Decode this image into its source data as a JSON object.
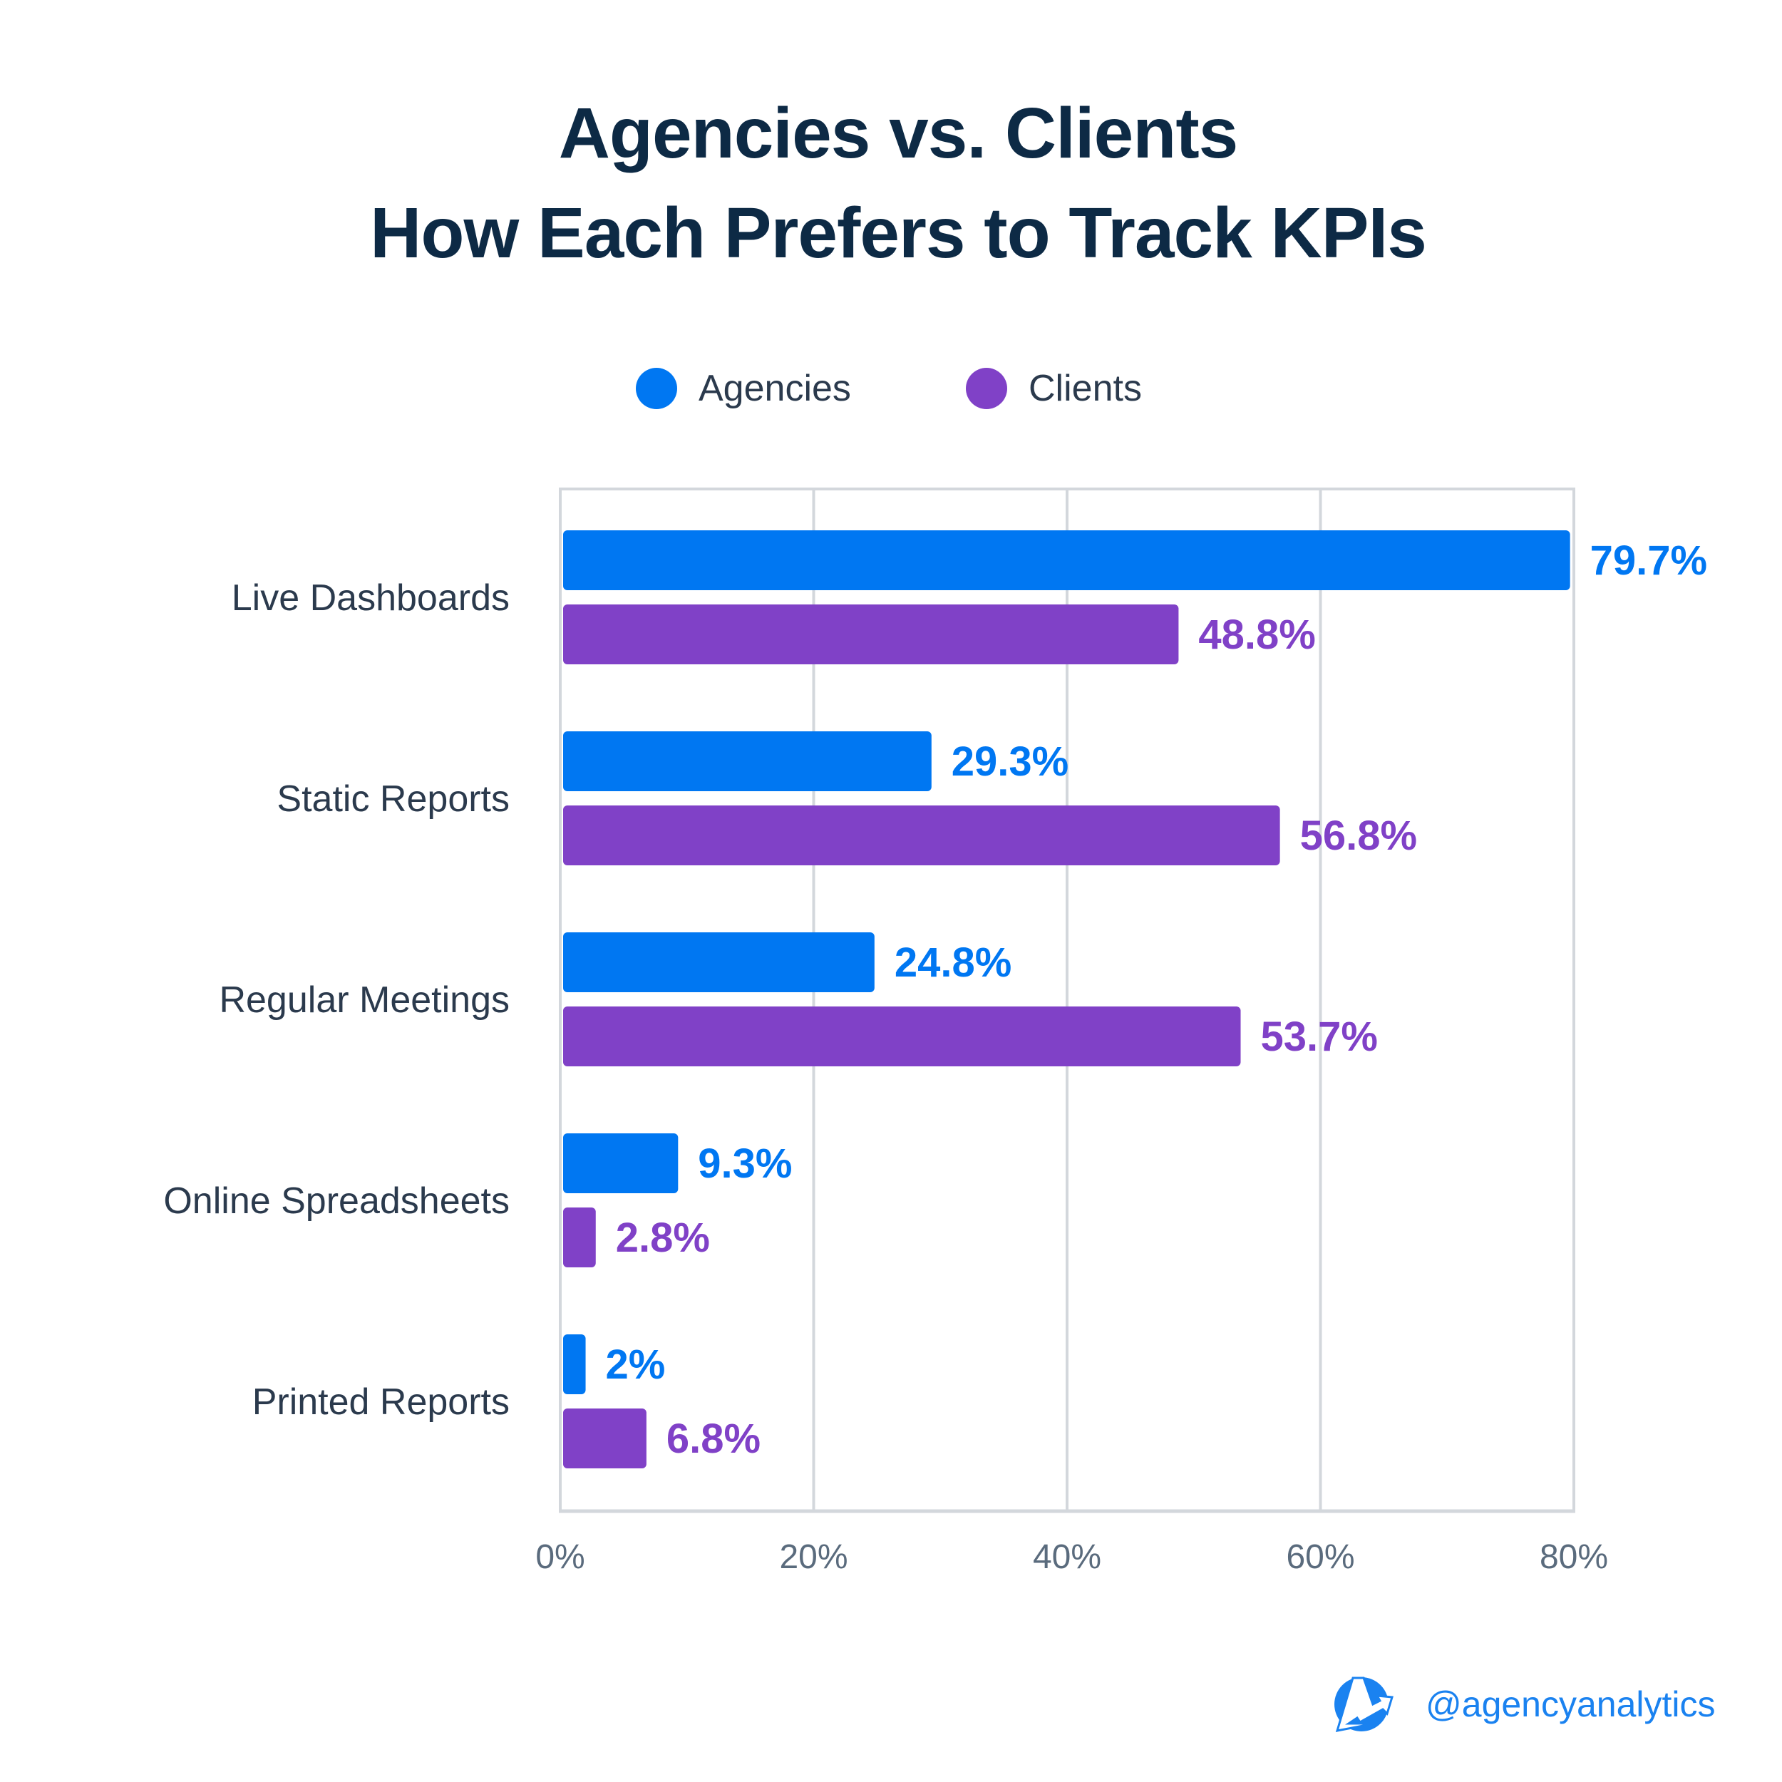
{
  "chart_data": {
    "type": "bar",
    "orientation": "horizontal",
    "title": "Agencies vs. Clients",
    "subtitle": "How Each Prefers to Track KPIs",
    "categories": [
      "Live Dashboards",
      "Static Reports",
      "Regular Meetings",
      "Online Spreadsheets",
      "Printed Reports"
    ],
    "series": [
      {
        "name": "Agencies",
        "color": "#0077f2",
        "values": [
          79.7,
          29.3,
          24.8,
          9.3,
          2
        ],
        "labels": [
          "79.7%",
          "29.3%",
          "24.8%",
          "9.3%",
          "2%"
        ]
      },
      {
        "name": "Clients",
        "color": "#8041c7",
        "values": [
          48.8,
          56.8,
          53.7,
          2.8,
          6.8
        ],
        "labels": [
          "48.8%",
          "56.8%",
          "53.7%",
          "2.8%",
          "6.8%"
        ]
      }
    ],
    "xlim": [
      0,
      80
    ],
    "xticks": [
      "0%",
      "20%",
      "40%",
      "60%",
      "80%"
    ],
    "grid": true,
    "legend": "top-center"
  },
  "brand": {
    "handle": "@agencyanalytics",
    "logo": "agencyanalytics-logo",
    "color": "#1a82f0"
  }
}
